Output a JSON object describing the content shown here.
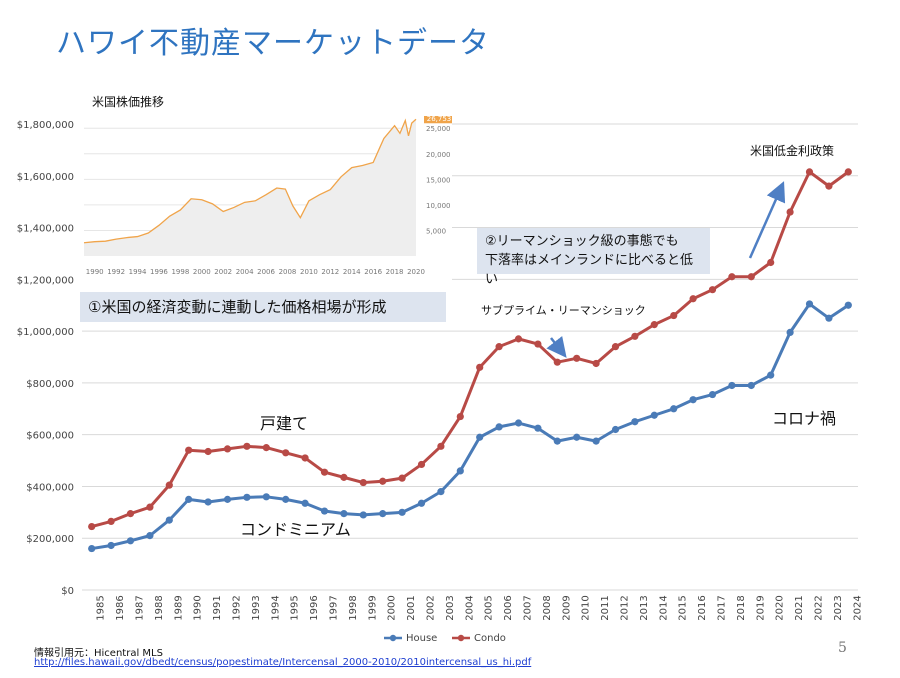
{
  "page": {
    "title": "ハワイ不動産マーケットデータ",
    "page_number": "5",
    "source_label": "情報引用元：Hicentral MLS",
    "source_url": "http://files.hawaii.gov/dbedt/census/popestimate/Intercensal_2000-2010/2010intercensal_us_hi.pdf"
  },
  "annotations": {
    "box1": "①米国の経済変動に連動した価格相場が形成",
    "box2_line1": "②リーマンショック級の事態でも",
    "box2_line2": "下落率はメインランドに比べると低い",
    "label_house": "戸建て",
    "label_condo": "コンドミニアム",
    "label_covid": "コロナ禍",
    "label_lehman": "サブプライム・リーマンショック",
    "label_low_rate": "米国低金利政策"
  },
  "colors": {
    "house": "#4a7bb7",
    "condo": "#b84a46",
    "grid": "#d9d9d9",
    "inset_line": "#f0a44a",
    "inset_fill": "#eeeeee",
    "arrow": "#4f7fc4"
  },
  "chart_data": [
    {
      "type": "line",
      "title": "",
      "xlabel": "",
      "ylabel": "",
      "ylim": [
        0,
        1800000
      ],
      "yticks": [
        "$0",
        "$200,000",
        "$400,000",
        "$600,000",
        "$800,000",
        "$1,000,000",
        "$1,200,000",
        "$1,400,000",
        "$1,600,000",
        "$1,800,000"
      ],
      "grid": true,
      "legend": "bottom",
      "categories": [
        "1985",
        "1986",
        "1987",
        "1988",
        "1989",
        "1990",
        "1991",
        "1992",
        "1993",
        "1994",
        "1995",
        "1996",
        "1997",
        "1998",
        "1999",
        "2000",
        "2001",
        "2002",
        "2003",
        "2004",
        "2005",
        "2006",
        "2007",
        "2008",
        "2009",
        "2010",
        "2011",
        "2012",
        "2013",
        "2014",
        "2015",
        "2016",
        "2017",
        "2018",
        "2019",
        "2020",
        "2021",
        "2022",
        "2023",
        "2024"
      ],
      "series": [
        {
          "name": "House",
          "values": [
            160000,
            172000,
            190000,
            210000,
            270000,
            350000,
            340000,
            350000,
            358000,
            360000,
            350000,
            335000,
            305000,
            295000,
            290000,
            295000,
            300000,
            335000,
            380000,
            460000,
            590000,
            630000,
            645000,
            625000,
            575000,
            590000,
            575000,
            620000,
            650000,
            675000,
            700000,
            735000,
            755000,
            790000,
            790000,
            830000,
            995000,
            1105000,
            1050000,
            1100000
          ]
        },
        {
          "name": "Condo",
          "values": [
            245000,
            265000,
            295000,
            320000,
            405000,
            540000,
            535000,
            545000,
            555000,
            550000,
            530000,
            510000,
            455000,
            435000,
            415000,
            420000,
            432000,
            485000,
            555000,
            670000,
            860000,
            940000,
            970000,
            950000,
            880000,
            895000,
            875000,
            940000,
            980000,
            1025000,
            1060000,
            1125000,
            1160000,
            1210000,
            1210000,
            1265000,
            1460000,
            1615000,
            1560000,
            1615000
          ]
        }
      ]
    },
    {
      "type": "area",
      "title": "米国株価推移",
      "xlabel": "",
      "ylabel": "",
      "ylim": [
        0,
        27000
      ],
      "xlim": [
        1989,
        2020
      ],
      "xticks": [
        "1990",
        "1992",
        "1994",
        "1996",
        "1998",
        "2000",
        "2002",
        "2004",
        "2006",
        "2008",
        "2010",
        "2012",
        "2014",
        "2016",
        "2018",
        "2020"
      ],
      "yticks": [
        "5,000",
        "10,000",
        "15,000",
        "20,000",
        "25,000"
      ],
      "last_value_label": "26,753",
      "series": [
        {
          "name": "",
          "x": [
            1989,
            1990,
            1991,
            1992,
            1993,
            1994,
            1995,
            1996,
            1997,
            1998,
            1999,
            2000,
            2001,
            2002,
            2003,
            2004,
            2005,
            2006,
            2007,
            2007.8,
            2008.5,
            2009.2,
            2010,
            2011,
            2012,
            2013,
            2014,
            2015,
            2016,
            2017,
            2018,
            2018.5,
            2019,
            2019.3,
            2019.6,
            2020
          ],
          "values": [
            2600,
            2800,
            2900,
            3300,
            3600,
            3800,
            4500,
            6000,
            7800,
            9000,
            11200,
            11000,
            10200,
            8700,
            9500,
            10500,
            10800,
            12000,
            13300,
            13100,
            9800,
            7500,
            10800,
            12000,
            13000,
            15500,
            17300,
            17700,
            18300,
            23000,
            25500,
            24000,
            26500,
            23500,
            26000,
            26753
          ]
        }
      ]
    }
  ]
}
